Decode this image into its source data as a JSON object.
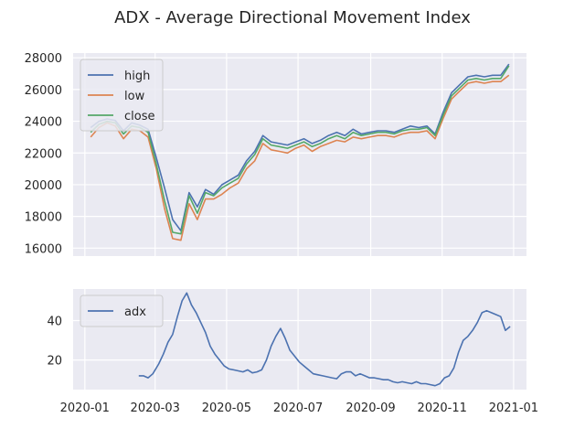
{
  "figure": {
    "title": "ADX - Average Directional Movement Index"
  },
  "chart_data": [
    {
      "type": "line",
      "title": "",
      "xlabel": "",
      "ylabel": "",
      "x": [
        "2020-01-06",
        "2020-01-13",
        "2020-01-20",
        "2020-01-27",
        "2020-02-03",
        "2020-02-10",
        "2020-02-17",
        "2020-02-24",
        "2020-03-02",
        "2020-03-09",
        "2020-03-16",
        "2020-03-23",
        "2020-03-30",
        "2020-04-06",
        "2020-04-13",
        "2020-04-20",
        "2020-04-27",
        "2020-05-04",
        "2020-05-11",
        "2020-05-18",
        "2020-05-25",
        "2020-06-01",
        "2020-06-08",
        "2020-06-15",
        "2020-06-22",
        "2020-06-29",
        "2020-07-06",
        "2020-07-13",
        "2020-07-20",
        "2020-07-27",
        "2020-08-03",
        "2020-08-10",
        "2020-08-17",
        "2020-08-24",
        "2020-08-31",
        "2020-09-07",
        "2020-09-14",
        "2020-09-21",
        "2020-09-28",
        "2020-10-05",
        "2020-10-12",
        "2020-10-19",
        "2020-10-26",
        "2020-11-02",
        "2020-11-09",
        "2020-11-16",
        "2020-11-23",
        "2020-11-30",
        "2020-12-07",
        "2020-12-14",
        "2020-12-21",
        "2020-12-28"
      ],
      "series": [
        {
          "name": "high",
          "color": "#4c72b0",
          "values": [
            23600,
            24000,
            24150,
            24050,
            23400,
            23900,
            23750,
            23500,
            21700,
            19800,
            17800,
            17100,
            19500,
            18600,
            19700,
            19400,
            20000,
            20300,
            20600,
            21500,
            22100,
            23100,
            22700,
            22600,
            22500,
            22700,
            22900,
            22600,
            22800,
            23100,
            23300,
            23100,
            23500,
            23200,
            23300,
            23400,
            23400,
            23300,
            23500,
            23700,
            23600,
            23700,
            23200,
            24600,
            25800,
            26300,
            26800,
            26900,
            26800,
            26900,
            26900,
            27600
          ]
        },
        {
          "name": "low",
          "color": "#dd8452",
          "values": [
            23000,
            23600,
            23900,
            23700,
            22900,
            23500,
            23400,
            23000,
            21000,
            18500,
            16600,
            16500,
            18800,
            17800,
            19100,
            19100,
            19400,
            19800,
            20100,
            21000,
            21500,
            22600,
            22200,
            22100,
            22000,
            22300,
            22500,
            22100,
            22400,
            22600,
            22800,
            22700,
            23000,
            22900,
            23000,
            23100,
            23100,
            23000,
            23200,
            23300,
            23300,
            23400,
            22900,
            24200,
            25400,
            25900,
            26400,
            26500,
            26400,
            26500,
            26500,
            26900
          ]
        },
        {
          "name": "close",
          "color": "#55a868",
          "values": [
            23300,
            23800,
            24000,
            23900,
            23200,
            23700,
            23600,
            23300,
            21300,
            19000,
            17000,
            16900,
            19300,
            18200,
            19500,
            19300,
            19800,
            20100,
            20400,
            21300,
            21900,
            22900,
            22500,
            22400,
            22300,
            22500,
            22700,
            22400,
            22600,
            22900,
            23100,
            22900,
            23300,
            23100,
            23200,
            23300,
            23300,
            23200,
            23400,
            23500,
            23500,
            23600,
            23100,
            24400,
            25600,
            26100,
            26600,
            26700,
            26600,
            26700,
            26700,
            27500
          ]
        }
      ],
      "ylim": [
        15500,
        28300
      ],
      "yticks": [
        16000,
        18000,
        20000,
        22000,
        24000,
        26000,
        28000
      ],
      "legend": "top-left",
      "grid": true
    },
    {
      "type": "line",
      "title": "",
      "xlabel": "",
      "ylabel": "",
      "x": [
        "2020-02-16",
        "2020-02-20",
        "2020-02-24",
        "2020-02-28",
        "2020-03-04",
        "2020-03-08",
        "2020-03-12",
        "2020-03-16",
        "2020-03-20",
        "2020-03-24",
        "2020-03-28",
        "2020-04-01",
        "2020-04-05",
        "2020-04-09",
        "2020-04-13",
        "2020-04-17",
        "2020-04-21",
        "2020-04-25",
        "2020-04-29",
        "2020-05-03",
        "2020-05-07",
        "2020-05-11",
        "2020-05-15",
        "2020-05-19",
        "2020-05-23",
        "2020-05-27",
        "2020-05-31",
        "2020-06-04",
        "2020-06-08",
        "2020-06-12",
        "2020-06-16",
        "2020-06-20",
        "2020-06-24",
        "2020-06-28",
        "2020-07-02",
        "2020-07-06",
        "2020-07-10",
        "2020-07-14",
        "2020-07-18",
        "2020-07-22",
        "2020-07-26",
        "2020-07-30",
        "2020-08-03",
        "2020-08-07",
        "2020-08-11",
        "2020-08-15",
        "2020-08-19",
        "2020-08-23",
        "2020-08-27",
        "2020-08-31",
        "2020-09-04",
        "2020-09-08",
        "2020-09-12",
        "2020-09-16",
        "2020-09-20",
        "2020-09-24",
        "2020-09-28",
        "2020-10-02",
        "2020-10-06",
        "2020-10-10",
        "2020-10-14",
        "2020-10-18",
        "2020-10-22",
        "2020-10-26",
        "2020-10-30",
        "2020-11-03",
        "2020-11-07",
        "2020-11-11",
        "2020-11-15",
        "2020-11-19",
        "2020-11-23",
        "2020-11-27",
        "2020-12-01",
        "2020-12-05",
        "2020-12-09",
        "2020-12-13",
        "2020-12-17",
        "2020-12-21",
        "2020-12-25",
        "2020-12-29"
      ],
      "series": [
        {
          "name": "adx",
          "color": "#4c72b0",
          "values": [
            12,
            12,
            11,
            13,
            18,
            23,
            29,
            33,
            42,
            50,
            54,
            48,
            44,
            39,
            34,
            27,
            23,
            20,
            17,
            15.5,
            15,
            14.5,
            14,
            15,
            13.5,
            14,
            15,
            20,
            27,
            32,
            36,
            31,
            25,
            22,
            19,
            17,
            15,
            13,
            12.5,
            12,
            11.5,
            11,
            10.5,
            13,
            14,
            14,
            12,
            13,
            12,
            11,
            11,
            10.5,
            10,
            10,
            9,
            8.5,
            9,
            8.5,
            8,
            9,
            8,
            8,
            7.5,
            7,
            8,
            11,
            12,
            16,
            24,
            30,
            32,
            35,
            39,
            44,
            45,
            44,
            43,
            42,
            35,
            37
          ]
        }
      ],
      "ylim": [
        5,
        56
      ],
      "yticks": [
        20,
        40
      ],
      "legend": "top-left",
      "grid": true
    }
  ],
  "x_axis": {
    "range": [
      "2019-12-22",
      "2021-01-12"
    ],
    "ticks": [
      "2020-01-01",
      "2020-03-01",
      "2020-05-01",
      "2020-07-01",
      "2020-09-01",
      "2020-11-01",
      "2021-01-01"
    ],
    "tick_labels": [
      "2020-01",
      "2020-03",
      "2020-05",
      "2020-07",
      "2020-09",
      "2020-11",
      "2021-01"
    ]
  },
  "colors": {
    "plot_bg": "#eaeaf2",
    "grid": "#ffffff",
    "text": "#262626"
  }
}
